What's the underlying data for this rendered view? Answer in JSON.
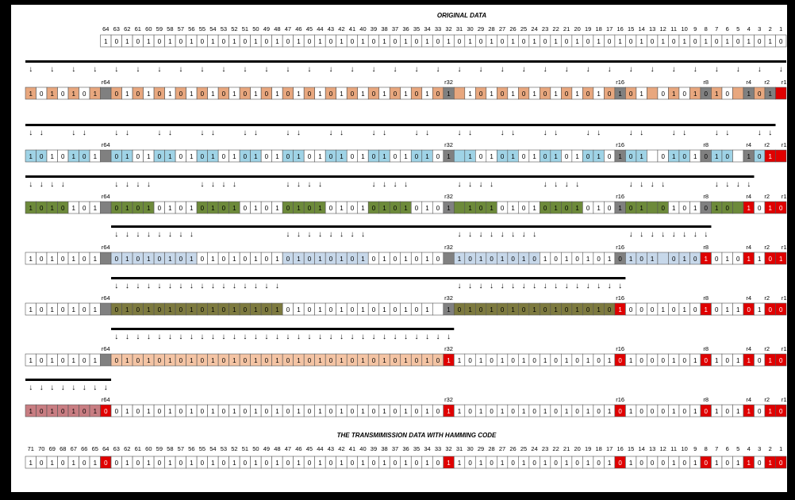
{
  "title_original": "ORIGINAL DATA",
  "title_transmission": "THE TRANSMIMISSION DATA WITH HAMMING CODE",
  "original_bit_numbers": [
    "64",
    "63",
    "62",
    "61",
    "60",
    "59",
    "58",
    "57",
    "56",
    "55",
    "54",
    "53",
    "52",
    "51",
    "50",
    "49",
    "48",
    "47",
    "46",
    "45",
    "44",
    "43",
    "42",
    "41",
    "40",
    "39",
    "38",
    "37",
    "36",
    "35",
    "34",
    "33",
    "32",
    "31",
    "30",
    "29",
    "28",
    "27",
    "26",
    "25",
    "24",
    "23",
    "22",
    "21",
    "20",
    "19",
    "18",
    "17",
    "16",
    "15",
    "14",
    "13",
    "12",
    "11",
    "10",
    "9",
    "8",
    "7",
    "6",
    "5",
    "4",
    "3",
    "2",
    "1"
  ],
  "transmission_bit_numbers": [
    "71",
    "70",
    "69",
    "68",
    "67",
    "66",
    "65",
    "64",
    "63",
    "62",
    "61",
    "60",
    "59",
    "58",
    "57",
    "56",
    "55",
    "54",
    "53",
    "52",
    "51",
    "50",
    "49",
    "48",
    "47",
    "46",
    "45",
    "44",
    "43",
    "42",
    "41",
    "40",
    "39",
    "38",
    "37",
    "36",
    "35",
    "34",
    "33",
    "32",
    "31",
    "30",
    "29",
    "28",
    "27",
    "26",
    "25",
    "24",
    "23",
    "22",
    "21",
    "20",
    "19",
    "18",
    "17",
    "16",
    "15",
    "14",
    "13",
    "12",
    "11",
    "10",
    "9",
    "8",
    "7",
    "6",
    "5",
    "4",
    "3",
    "2",
    "1"
  ],
  "parity_labels": {
    "r64": "r64",
    "r32": "r32",
    "r16": "r16",
    "r8": "r8",
    "r4": "r4",
    "r2": "r2",
    "r1": "r1"
  },
  "arrow_glyph": "↓",
  "colors": {
    "r1": "#e8a77e",
    "r2": "#9fd3e6",
    "r4": "#6d8a3a",
    "r8": "#c7d8ea",
    "r16": "#7d7a3f",
    "r32": "#f4c4a4",
    "r64": "#c87d82",
    "parity_pending": "#808080",
    "parity_set": "#e00000",
    "cell_text_highlight": "#e03030"
  },
  "original_bits": "1010101010101010101010101010101010101010101010101010101010101010",
  "rows": [
    {
      "name": "r1-step",
      "bits": "1010101?01010101010101010101010101010101?10101010101010101?0101010?101?1?0",
      "result_index": 70
    },
    {
      "name": "r2-step",
      "bits": "1010101?01010101010101010101010101010101?10101010101010101?0101010?101?110",
      "result_index": 69
    },
    {
      "name": "r4-step",
      "bits": "1010101?01010101010101010101010101010101?10101010101010101?0101010?101010",
      "result_index": 67
    },
    {
      "name": "r8-step",
      "bits": "1010101?0101010101010101010101010101010?1010101010101010101?010101011010010",
      "result_index": 63
    },
    {
      "name": "r16-step",
      "bits": "1010101?010101010101010101010101010101?1010101010101010100010101011010010",
      "result_index": 55
    },
    {
      "name": "r32-step",
      "bits": "1010101?0101010101010101010101010101010110101010101010101000101010110101010",
      "result_index": 39
    },
    {
      "name": "r64-step",
      "bits": "101010100101010101010101010101010101010110101010101010101000101010110101010",
      "result_index": 7
    }
  ],
  "transmission_bits": "10101010010101010101010101010101010101011010101010101010100010101011010010"
}
